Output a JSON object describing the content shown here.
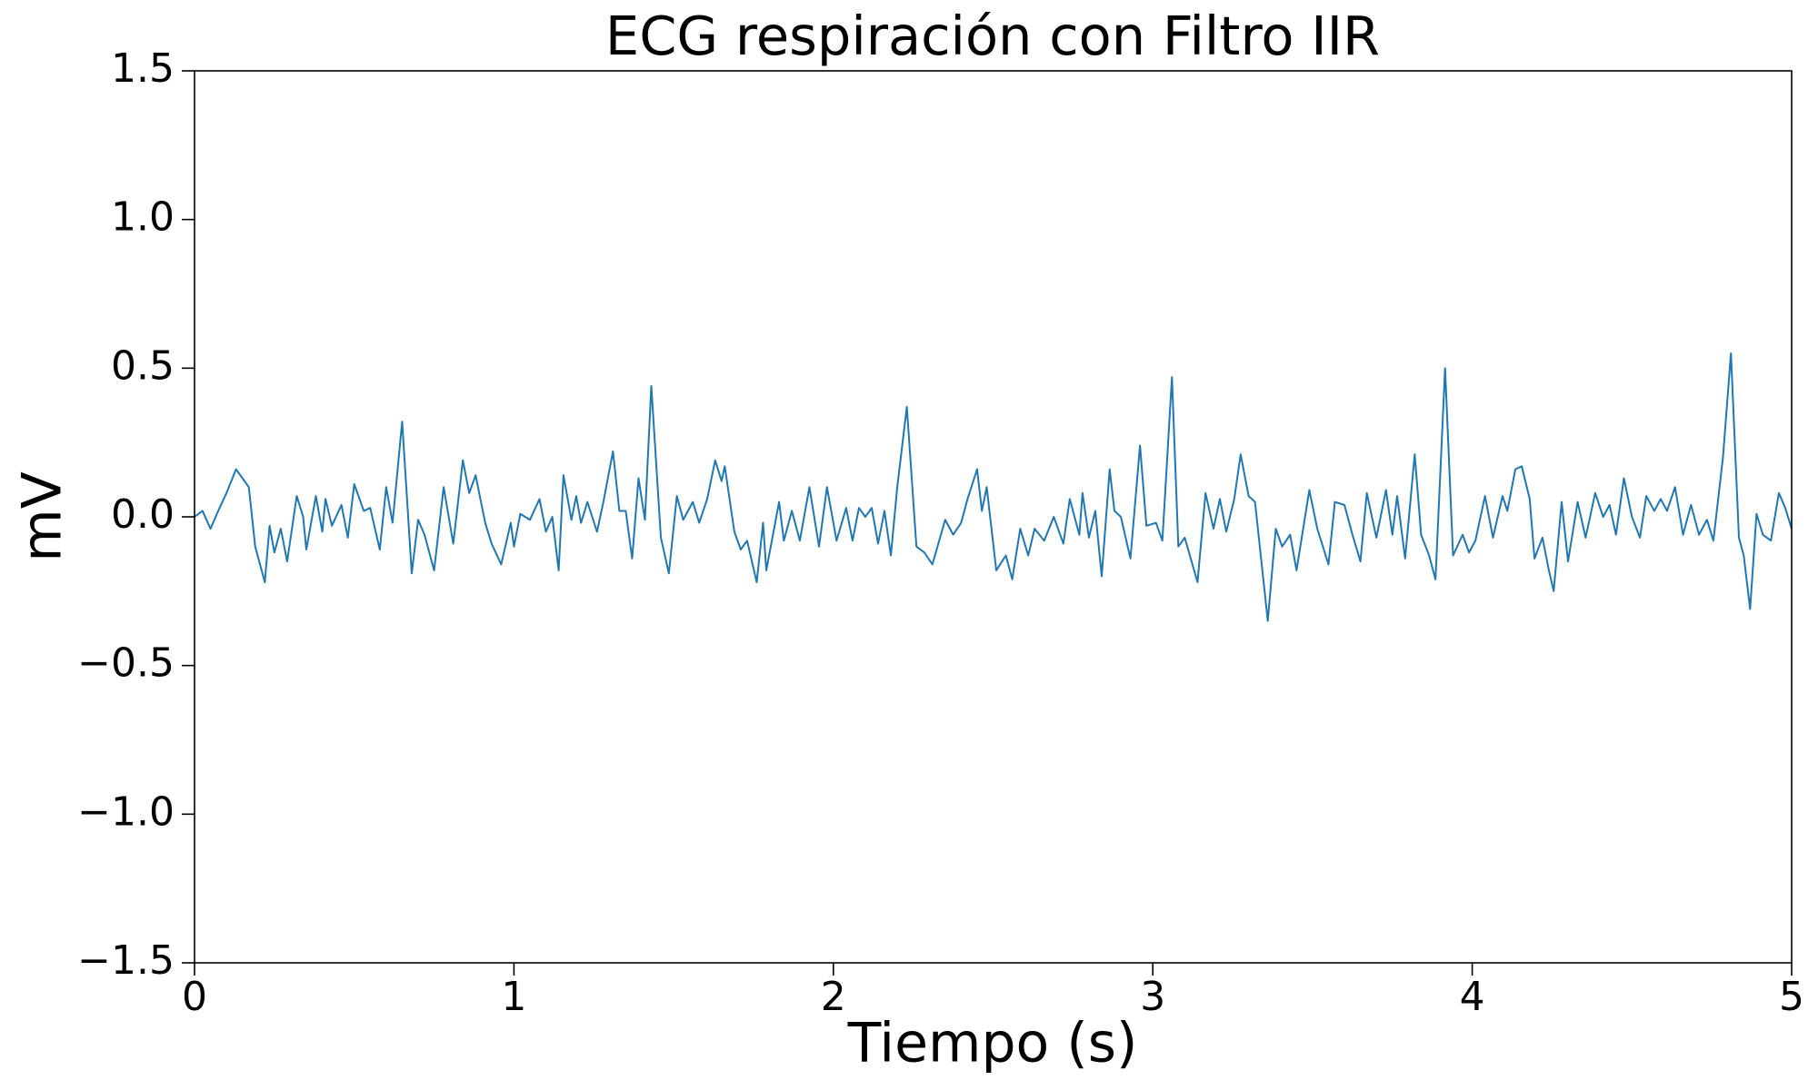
{
  "chart_data": {
    "type": "line",
    "title": "ECG respiración con Filtro IIR",
    "xlabel": "Tiempo (s)",
    "ylabel": "mV",
    "color": "#1f77b4",
    "xlim": [
      0,
      5
    ],
    "ylim": [
      -1.5,
      1.5
    ],
    "xticks": [
      0,
      1,
      2,
      3,
      4,
      5
    ],
    "yticks": [
      {
        "value": -1.5,
        "label": "−1.5"
      },
      {
        "value": -1.0,
        "label": "−1.0"
      },
      {
        "value": -0.5,
        "label": "−0.5"
      },
      {
        "value": 0,
        "label": "0.0"
      },
      0.5,
      {
        "value": 1.0,
        "label": "1.0"
      },
      1.5
    ],
    "grid": false,
    "x": [
      0,
      0.025,
      0.05,
      0.07,
      0.1,
      0.13,
      0.17,
      0.19,
      0.22,
      0.235,
      0.25,
      0.27,
      0.29,
      0.32,
      0.34,
      0.35,
      0.38,
      0.4,
      0.41,
      0.43,
      0.46,
      0.48,
      0.5,
      0.53,
      0.55,
      0.58,
      0.6,
      0.62,
      0.65,
      0.68,
      0.7,
      0.72,
      0.75,
      0.78,
      0.81,
      0.84,
      0.86,
      0.88,
      0.91,
      0.93,
      0.96,
      0.99,
      1.0,
      1.02,
      1.05,
      1.08,
      1.1,
      1.12,
      1.14,
      1.155,
      1.18,
      1.195,
      1.21,
      1.23,
      1.26,
      1.28,
      1.31,
      1.33,
      1.35,
      1.37,
      1.39,
      1.41,
      1.43,
      1.46,
      1.485,
      1.51,
      1.53,
      1.56,
      1.58,
      1.605,
      1.63,
      1.65,
      1.66,
      1.69,
      1.71,
      1.73,
      1.76,
      1.78,
      1.79,
      1.83,
      1.845,
      1.87,
      1.895,
      1.925,
      1.955,
      1.98,
      2.01,
      2.04,
      2.06,
      2.08,
      2.1,
      2.12,
      2.14,
      2.16,
      2.18,
      2.2,
      2.23,
      2.26,
      2.285,
      2.31,
      2.35,
      2.375,
      2.4,
      2.42,
      2.45,
      2.465,
      2.48,
      2.51,
      2.54,
      2.56,
      2.585,
      2.61,
      2.63,
      2.66,
      2.69,
      2.72,
      2.74,
      2.77,
      2.78,
      2.8,
      2.82,
      2.84,
      2.865,
      2.88,
      2.9,
      2.93,
      2.96,
      2.98,
      3.01,
      3.03,
      3.06,
      3.08,
      3.1,
      3.14,
      3.165,
      3.19,
      3.21,
      3.23,
      3.255,
      3.275,
      3.3,
      3.32,
      3.36,
      3.385,
      3.405,
      3.43,
      3.45,
      3.49,
      3.515,
      3.55,
      3.57,
      3.6,
      3.625,
      3.65,
      3.67,
      3.7,
      3.73,
      3.75,
      3.765,
      3.79,
      3.82,
      3.84,
      3.865,
      3.885,
      3.915,
      3.94,
      3.97,
      3.99,
      4.01,
      4.04,
      4.065,
      4.095,
      4.11,
      4.135,
      4.155,
      4.18,
      4.195,
      4.22,
      4.24,
      4.255,
      4.28,
      4.3,
      4.33,
      4.355,
      4.385,
      4.41,
      4.43,
      4.45,
      4.475,
      4.5,
      4.525,
      4.545,
      4.57,
      4.59,
      4.61,
      4.635,
      4.66,
      4.685,
      4.71,
      4.735,
      4.755,
      4.785,
      4.81,
      4.835,
      4.85,
      4.87,
      4.89,
      4.91,
      4.935,
      4.96,
      4.98,
      5.0
    ],
    "values": [
      0,
      0.02,
      -0.04,
      0.01,
      0.08,
      0.16,
      0.1,
      -0.1,
      -0.22,
      -0.03,
      -0.12,
      -0.04,
      -0.15,
      0.07,
      0,
      -0.11,
      0.07,
      -0.05,
      0.06,
      -0.03,
      0.04,
      -0.07,
      0.11,
      0.02,
      0.03,
      -0.11,
      0.1,
      -0.02,
      0.32,
      -0.19,
      -0.01,
      -0.06,
      -0.18,
      0.1,
      -0.09,
      0.19,
      0.08,
      0.14,
      -0.02,
      -0.09,
      -0.16,
      -0.02,
      -0.1,
      0.01,
      -0.01,
      0.06,
      -0.05,
      0,
      -0.18,
      0.14,
      -0.01,
      0.07,
      -0.02,
      0.05,
      -0.05,
      0.05,
      0.22,
      0.02,
      0.02,
      -0.14,
      0.13,
      -0.01,
      0.44,
      -0.07,
      -0.19,
      0.07,
      -0.01,
      0.05,
      -0.02,
      0.06,
      0.19,
      0.12,
      0.17,
      -0.05,
      -0.11,
      -0.08,
      -0.22,
      -0.02,
      -0.18,
      0.05,
      -0.08,
      0.02,
      -0.08,
      0.1,
      -0.1,
      0.1,
      -0.08,
      0.03,
      -0.08,
      0.03,
      0,
      0.03,
      -0.09,
      0.02,
      -0.13,
      0.1,
      0.37,
      -0.1,
      -0.12,
      -0.16,
      -0.01,
      -0.06,
      -0.02,
      0.06,
      0.16,
      0.02,
      0.1,
      -0.18,
      -0.13,
      -0.21,
      -0.04,
      -0.13,
      -0.04,
      -0.08,
      0,
      -0.09,
      0.06,
      -0.06,
      0.08,
      -0.07,
      0.02,
      -0.2,
      0.16,
      0.02,
      0,
      -0.14,
      0.24,
      -0.03,
      -0.02,
      -0.08,
      0.47,
      -0.1,
      -0.07,
      -0.22,
      0.08,
      -0.04,
      0.06,
      -0.05,
      0.06,
      0.21,
      0.07,
      0.05,
      -0.35,
      -0.04,
      -0.1,
      -0.06,
      -0.18,
      0.09,
      -0.04,
      -0.16,
      0.05,
      0.04,
      -0.06,
      -0.15,
      0.08,
      -0.07,
      0.09,
      -0.06,
      0.07,
      -0.14,
      0.21,
      -0.06,
      -0.13,
      -0.21,
      0.5,
      -0.13,
      -0.06,
      -0.12,
      -0.08,
      0.07,
      -0.07,
      0.07,
      0.02,
      0.16,
      0.17,
      0.06,
      -0.14,
      -0.07,
      -0.18,
      -0.25,
      0.05,
      -0.15,
      0.05,
      -0.07,
      0.08,
      0,
      0.04,
      -0.06,
      0.13,
      0,
      -0.07,
      0.07,
      0.02,
      0.06,
      0.02,
      0.1,
      -0.06,
      0.04,
      -0.06,
      -0.01,
      -0.08,
      0.2,
      0.55,
      -0.07,
      -0.13,
      -0.31,
      0.01,
      -0.06,
      -0.08,
      0.08,
      0.03,
      -0.04
    ]
  }
}
